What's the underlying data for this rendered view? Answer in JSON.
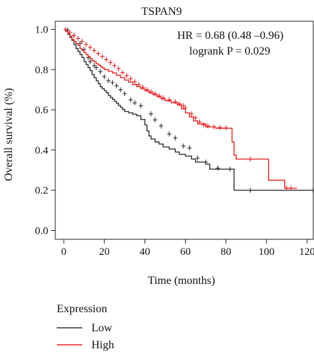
{
  "chart_data": {
    "type": "line",
    "title": "TSPAN9",
    "xlabel": "Time (months)",
    "ylabel": "Overall survival (%)",
    "xlim": [
      0,
      125
    ],
    "ylim": [
      0,
      1.05
    ],
    "xticks": [
      0,
      20,
      40,
      60,
      80,
      100,
      120
    ],
    "yticks": [
      0.0,
      0.2,
      0.4,
      0.6,
      0.8,
      1.0
    ],
    "xtick_labels": [
      "0",
      "20",
      "40",
      "60",
      "80",
      "100",
      "120"
    ],
    "ytick_labels": [
      "0.0",
      "0.2",
      "0.4",
      "0.6",
      "0.8",
      "1.0"
    ],
    "grid": false,
    "annotations": [
      "HR = 0.68 (0.48 –0.96)",
      "logrank P = 0.029"
    ],
    "legend": {
      "title": "Expression",
      "placement": "bottom-left",
      "entries": [
        "Low",
        "High"
      ]
    },
    "series": [
      {
        "name": "Low",
        "color": "#333333",
        "step_points": [
          [
            0,
            1.0
          ],
          [
            1,
            0.99
          ],
          [
            2,
            0.975
          ],
          [
            3,
            0.96
          ],
          [
            4,
            0.945
          ],
          [
            5,
            0.925
          ],
          [
            6,
            0.905
          ],
          [
            7,
            0.89
          ],
          [
            8,
            0.875
          ],
          [
            9,
            0.86
          ],
          [
            10,
            0.84
          ],
          [
            11,
            0.825
          ],
          [
            12,
            0.81
          ],
          [
            13,
            0.795
          ],
          [
            14,
            0.775
          ],
          [
            15,
            0.76
          ],
          [
            16,
            0.745
          ],
          [
            17,
            0.73
          ],
          [
            18,
            0.715
          ],
          [
            19,
            0.705
          ],
          [
            20,
            0.695
          ],
          [
            21,
            0.685
          ],
          [
            22,
            0.672
          ],
          [
            23,
            0.662
          ],
          [
            24,
            0.652
          ],
          [
            25,
            0.642
          ],
          [
            26,
            0.632
          ],
          [
            27,
            0.622
          ],
          [
            28,
            0.612
          ],
          [
            29,
            0.602
          ],
          [
            30,
            0.592
          ],
          [
            32,
            0.585
          ],
          [
            34,
            0.578
          ],
          [
            36,
            0.57
          ],
          [
            38,
            0.552
          ],
          [
            40,
            0.525
          ],
          [
            41,
            0.495
          ],
          [
            42,
            0.47
          ],
          [
            43,
            0.455
          ],
          [
            45,
            0.44
          ],
          [
            47,
            0.43
          ],
          [
            49,
            0.415
          ],
          [
            52,
            0.405
          ],
          [
            55,
            0.39
          ],
          [
            57,
            0.378
          ],
          [
            60,
            0.37
          ],
          [
            63,
            0.355
          ],
          [
            65,
            0.34
          ],
          [
            70,
            0.33
          ],
          [
            72,
            0.305
          ],
          [
            80,
            0.305
          ],
          [
            84,
            0.2
          ],
          [
            123,
            0.2
          ]
        ],
        "censor_marks": [
          [
            2,
            0.995
          ],
          [
            5,
            0.97
          ],
          [
            8,
            0.93
          ],
          [
            10,
            0.9
          ],
          [
            12,
            0.86
          ],
          [
            13,
            0.84
          ],
          [
            15,
            0.82
          ],
          [
            16,
            0.81
          ],
          [
            18,
            0.79
          ],
          [
            20,
            0.765
          ],
          [
            22,
            0.745
          ],
          [
            24,
            0.735
          ],
          [
            26,
            0.72
          ],
          [
            28,
            0.7
          ],
          [
            30,
            0.68
          ],
          [
            33,
            0.65
          ],
          [
            35,
            0.635
          ],
          [
            38,
            0.62
          ],
          [
            43,
            0.58
          ],
          [
            45,
            0.55
          ],
          [
            48,
            0.52
          ],
          [
            52,
            0.48
          ],
          [
            55,
            0.46
          ],
          [
            59,
            0.42
          ],
          [
            62,
            0.41
          ],
          [
            66,
            0.36
          ],
          [
            70,
            0.34
          ],
          [
            76,
            0.31
          ],
          [
            82,
            0.305
          ],
          [
            92,
            0.2
          ],
          [
            123,
            0.2
          ]
        ]
      },
      {
        "name": "High",
        "color": "#e8282b",
        "step_points": [
          [
            0,
            1.0
          ],
          [
            1,
            0.99
          ],
          [
            2,
            0.98
          ],
          [
            3,
            0.965
          ],
          [
            4,
            0.95
          ],
          [
            5,
            0.94
          ],
          [
            6,
            0.93
          ],
          [
            7,
            0.92
          ],
          [
            8,
            0.905
          ],
          [
            9,
            0.895
          ],
          [
            10,
            0.885
          ],
          [
            11,
            0.875
          ],
          [
            12,
            0.865
          ],
          [
            13,
            0.855
          ],
          [
            14,
            0.845
          ],
          [
            15,
            0.838
          ],
          [
            16,
            0.83
          ],
          [
            17,
            0.823
          ],
          [
            18,
            0.815
          ],
          [
            19,
            0.808
          ],
          [
            20,
            0.8
          ],
          [
            22,
            0.792
          ],
          [
            24,
            0.783
          ],
          [
            26,
            0.772
          ],
          [
            28,
            0.76
          ],
          [
            30,
            0.748
          ],
          [
            32,
            0.738
          ],
          [
            34,
            0.725
          ],
          [
            36,
            0.715
          ],
          [
            38,
            0.705
          ],
          [
            40,
            0.695
          ],
          [
            42,
            0.685
          ],
          [
            44,
            0.675
          ],
          [
            46,
            0.665
          ],
          [
            48,
            0.655
          ],
          [
            50,
            0.645
          ],
          [
            53,
            0.635
          ],
          [
            56,
            0.625
          ],
          [
            58,
            0.605
          ],
          [
            60,
            0.585
          ],
          [
            62,
            0.565
          ],
          [
            64,
            0.545
          ],
          [
            66,
            0.53
          ],
          [
            70,
            0.515
          ],
          [
            75,
            0.508
          ],
          [
            82,
            0.508
          ],
          [
            83,
            0.44
          ],
          [
            84,
            0.375
          ],
          [
            85,
            0.355
          ],
          [
            100,
            0.355
          ],
          [
            101,
            0.25
          ],
          [
            108,
            0.25
          ],
          [
            109,
            0.21
          ],
          [
            115,
            0.21
          ]
        ],
        "censor_marks": [
          [
            1,
            1.0
          ],
          [
            3,
            0.985
          ],
          [
            5,
            0.97
          ],
          [
            7,
            0.955
          ],
          [
            9,
            0.94
          ],
          [
            11,
            0.925
          ],
          [
            13,
            0.91
          ],
          [
            15,
            0.895
          ],
          [
            17,
            0.88
          ],
          [
            19,
            0.865
          ],
          [
            21,
            0.85
          ],
          [
            23,
            0.835
          ],
          [
            25,
            0.82
          ],
          [
            27,
            0.805
          ],
          [
            29,
            0.785
          ],
          [
            31,
            0.77
          ],
          [
            33,
            0.755
          ],
          [
            35,
            0.74
          ],
          [
            37,
            0.725
          ],
          [
            39,
            0.712
          ],
          [
            41,
            0.7
          ],
          [
            43,
            0.69
          ],
          [
            45,
            0.68
          ],
          [
            47,
            0.67
          ],
          [
            49,
            0.66
          ],
          [
            52,
            0.65
          ],
          [
            55,
            0.64
          ],
          [
            57,
            0.63
          ],
          [
            59,
            0.62
          ],
          [
            60,
            0.61
          ],
          [
            63,
            0.58
          ],
          [
            65,
            0.56
          ],
          [
            67,
            0.54
          ],
          [
            69,
            0.525
          ],
          [
            71,
            0.52
          ],
          [
            74,
            0.515
          ],
          [
            77,
            0.512
          ],
          [
            80,
            0.51
          ],
          [
            92,
            0.355
          ],
          [
            110,
            0.21
          ],
          [
            112,
            0.21
          ]
        ]
      }
    ]
  }
}
